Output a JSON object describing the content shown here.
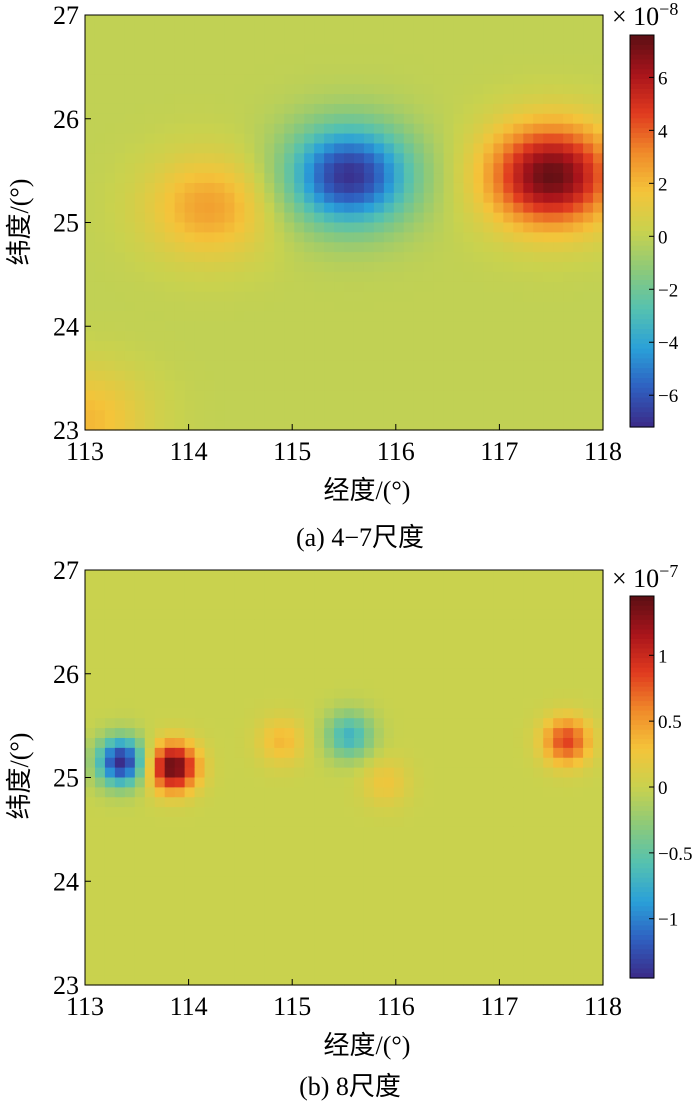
{
  "panels": [
    {
      "caption": "(a) 4−7尺度",
      "xlabel": "经度/(°)",
      "ylabel": "纬度/(°)",
      "colorbar_exponent_label": "× 10",
      "colorbar_exponent_sup": "−8"
    },
    {
      "caption": "(b) 8尺度",
      "xlabel": "经度/(°)",
      "ylabel": "纬度/(°)",
      "colorbar_exponent_label": "× 10",
      "colorbar_exponent_sup": "−7"
    }
  ],
  "colormap": [
    "#352a87",
    "#0363e1",
    "#1485d4",
    "#06a7c6",
    "#38b99e",
    "#92bf73",
    "#d9ba56",
    "#fcce2e",
    "#f9fb0e"
  ],
  "colormap_jet_style": [
    "#3b2a87",
    "#2f5fc0",
    "#2aa0d9",
    "#55c1b0",
    "#8cc97a",
    "#c9d24e",
    "#f4c43a",
    "#f08a2a",
    "#e03a1f",
    "#a8141b",
    "#5a0f14"
  ],
  "chart_data": [
    {
      "type": "heatmap",
      "x_ticks": [
        113,
        114,
        115,
        116,
        117,
        118
      ],
      "y_ticks": [
        23,
        24,
        25,
        26,
        27
      ],
      "xlim": [
        113,
        118
      ],
      "ylim": [
        23,
        27
      ],
      "colorbar_ticks": [
        -6,
        -4,
        -2,
        0,
        2,
        4,
        6
      ],
      "colorbar_range": [
        -7.2,
        7.6
      ],
      "colorbar_scale_exponent": -8,
      "features": [
        {
          "x": 115.55,
          "y": 25.45,
          "value": -7.0
        },
        {
          "x": 117.5,
          "y": 25.45,
          "value": 7.4
        },
        {
          "x": 114.2,
          "y": 25.15,
          "value": 2.6
        },
        {
          "x": 113.0,
          "y": 23.1,
          "value": 2.0
        }
      ]
    },
    {
      "type": "heatmap",
      "x_ticks": [
        113,
        114,
        115,
        116,
        117,
        118
      ],
      "y_ticks": [
        23,
        24,
        25,
        26,
        27
      ],
      "xlim": [
        113,
        118
      ],
      "ylim": [
        23,
        27
      ],
      "colorbar_ticks": [
        -1,
        -0.5,
        0,
        0.5,
        1
      ],
      "colorbar_range": [
        -1.45,
        1.45
      ],
      "colorbar_scale_exponent": -7,
      "features": [
        {
          "x": 113.35,
          "y": 25.15,
          "value": -1.45
        },
        {
          "x": 113.85,
          "y": 25.1,
          "value": 1.45
        },
        {
          "x": 115.55,
          "y": 25.4,
          "value": -0.7
        },
        {
          "x": 117.65,
          "y": 25.35,
          "value": 0.85
        },
        {
          "x": 114.9,
          "y": 25.35,
          "value": 0.35
        },
        {
          "x": 115.9,
          "y": 24.95,
          "value": 0.25
        }
      ]
    }
  ]
}
